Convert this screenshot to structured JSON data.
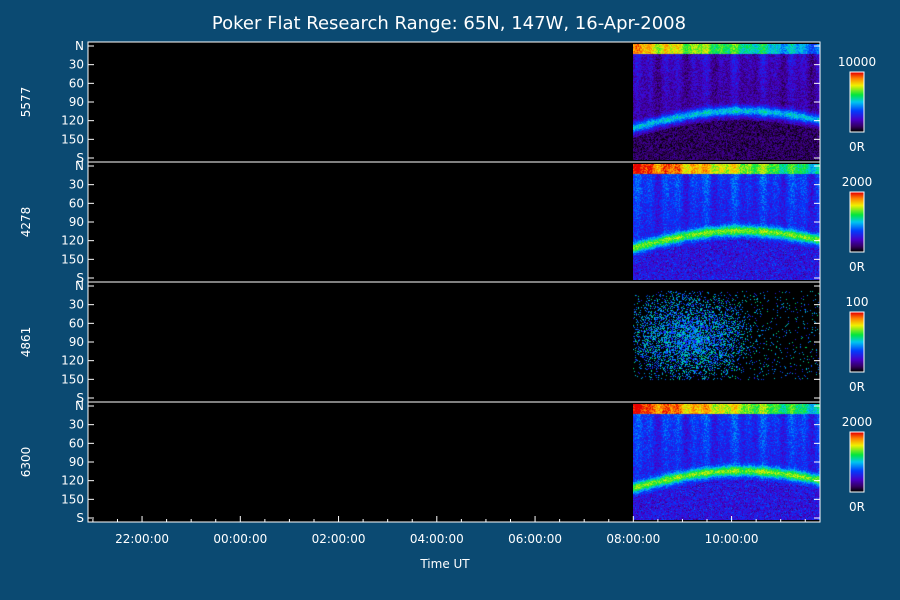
{
  "chart_data": {
    "type": "heatmap",
    "title": "Poker Flat Research Range: 65N, 147W, 16-Apr-2008",
    "xlabel": "Time UT",
    "x_tick_labels": [
      "22:00:00",
      "00:00:00",
      "02:00:00",
      "04:00:00",
      "06:00:00",
      "08:00:00",
      "10:00:00"
    ],
    "x_ticks_hours": [
      22,
      24,
      26,
      28,
      30,
      32,
      34
    ],
    "xlim_hours": [
      20.9,
      35.8
    ],
    "data_start_hours": 32.0,
    "y_tick_labels": [
      "N",
      "30",
      "60",
      "90",
      "120",
      "150",
      "S"
    ],
    "y_tick_values": [
      0,
      30,
      60,
      90,
      120,
      150,
      180
    ],
    "ylim": [
      0,
      180
    ],
    "colormap": "rainbow",
    "panels": [
      {
        "name": "5577",
        "cb_max_label": "10000",
        "cb_min_label": "0R",
        "cb_max": 10000,
        "style": "bright"
      },
      {
        "name": "4278",
        "cb_max_label": "2000",
        "cb_min_label": "0R",
        "cb_max": 2000,
        "style": "dense"
      },
      {
        "name": "4861",
        "cb_max_label": "100",
        "cb_min_label": "0R",
        "cb_max": 100,
        "style": "sparse"
      },
      {
        "name": "6300",
        "cb_max_label": "2000",
        "cb_min_label": "0R",
        "cb_max": 2000,
        "style": "dense"
      }
    ]
  }
}
